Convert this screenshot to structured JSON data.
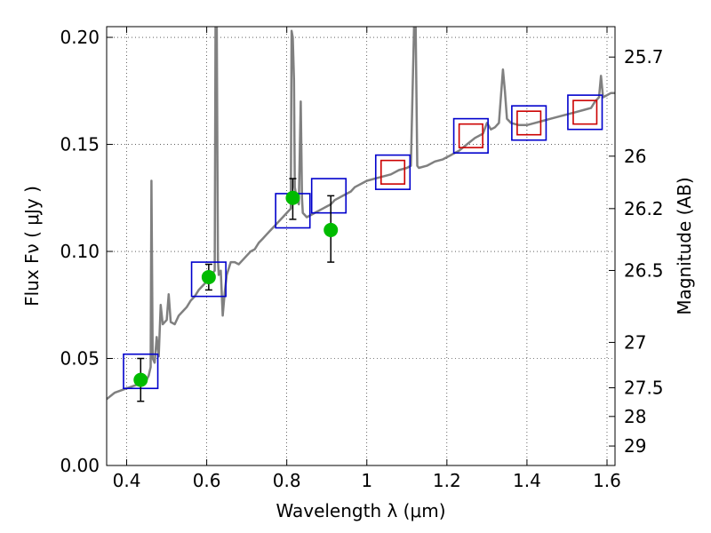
{
  "chart_data": {
    "type": "scatter",
    "xlabel": "Wavelength  λ (μm)",
    "ylabel": "Flux  Fν  ( μJy )",
    "y2label": "Magnitude (AB)",
    "xlim": [
      0.35,
      1.62
    ],
    "ylim": [
      0.0,
      0.205
    ],
    "grid": true,
    "xticks": [
      {
        "value": 0.4,
        "label": "0.4"
      },
      {
        "value": 0.6,
        "label": "0.6"
      },
      {
        "value": 0.8,
        "label": "0.8"
      },
      {
        "value": 1.0,
        "label": "1"
      },
      {
        "value": 1.2,
        "label": "1.2"
      },
      {
        "value": 1.4,
        "label": "1.4"
      },
      {
        "value": 1.6,
        "label": "1.6"
      }
    ],
    "yticks": [
      {
        "value": 0.0,
        "label": "0.00"
      },
      {
        "value": 0.05,
        "label": "0.05"
      },
      {
        "value": 0.1,
        "label": "0.10"
      },
      {
        "value": 0.15,
        "label": "0.15"
      },
      {
        "value": 0.2,
        "label": "0.20"
      }
    ],
    "y2ticks": [
      {
        "flux": 0.1908,
        "label": "25.7"
      },
      {
        "flux": 0.1445,
        "label": "26"
      },
      {
        "flux": 0.12,
        "label": "26.2"
      },
      {
        "flux": 0.0911,
        "label": "26.5"
      },
      {
        "flux": 0.0575,
        "label": "27"
      },
      {
        "flux": 0.0363,
        "label": "27.5"
      },
      {
        "flux": 0.0229,
        "label": "28"
      },
      {
        "flux": 0.0091,
        "label": "29"
      }
    ],
    "series": [
      {
        "kind": "line",
        "color": "#808080",
        "points": [
          [
            0.35,
            0.031
          ],
          [
            0.37,
            0.034
          ],
          [
            0.4,
            0.036
          ],
          [
            0.43,
            0.038
          ],
          [
            0.45,
            0.04
          ],
          [
            0.455,
            0.042
          ],
          [
            0.46,
            0.046
          ],
          [
            0.462,
            0.133
          ],
          [
            0.465,
            0.05
          ],
          [
            0.47,
            0.048
          ],
          [
            0.475,
            0.06
          ],
          [
            0.48,
            0.051
          ],
          [
            0.485,
            0.075
          ],
          [
            0.49,
            0.066
          ],
          [
            0.5,
            0.068
          ],
          [
            0.505,
            0.08
          ],
          [
            0.51,
            0.067
          ],
          [
            0.52,
            0.066
          ],
          [
            0.53,
            0.07
          ],
          [
            0.54,
            0.072
          ],
          [
            0.55,
            0.074
          ],
          [
            0.56,
            0.077
          ],
          [
            0.57,
            0.079
          ],
          [
            0.58,
            0.082
          ],
          [
            0.59,
            0.084
          ],
          [
            0.6,
            0.086
          ],
          [
            0.61,
            0.087
          ],
          [
            0.615,
            0.09
          ],
          [
            0.62,
            0.091
          ],
          [
            0.622,
            0.205
          ],
          [
            0.625,
            0.205
          ],
          [
            0.628,
            0.096
          ],
          [
            0.63,
            0.089
          ],
          [
            0.635,
            0.091
          ],
          [
            0.64,
            0.07
          ],
          [
            0.645,
            0.081
          ],
          [
            0.65,
            0.089
          ],
          [
            0.66,
            0.095
          ],
          [
            0.67,
            0.095
          ],
          [
            0.68,
            0.094
          ],
          [
            0.69,
            0.096
          ],
          [
            0.7,
            0.098
          ],
          [
            0.71,
            0.1
          ],
          [
            0.72,
            0.101
          ],
          [
            0.73,
            0.104
          ],
          [
            0.74,
            0.106
          ],
          [
            0.75,
            0.108
          ],
          [
            0.76,
            0.11
          ],
          [
            0.77,
            0.112
          ],
          [
            0.78,
            0.114
          ],
          [
            0.79,
            0.116
          ],
          [
            0.8,
            0.118
          ],
          [
            0.81,
            0.12
          ],
          [
            0.812,
            0.203
          ],
          [
            0.815,
            0.2
          ],
          [
            0.818,
            0.18
          ],
          [
            0.82,
            0.13
          ],
          [
            0.825,
            0.125
          ],
          [
            0.83,
            0.122
          ],
          [
            0.835,
            0.17
          ],
          [
            0.838,
            0.125
          ],
          [
            0.84,
            0.118
          ],
          [
            0.85,
            0.116
          ],
          [
            0.86,
            0.117
          ],
          [
            0.87,
            0.118
          ],
          [
            0.88,
            0.119
          ],
          [
            0.89,
            0.12
          ],
          [
            0.9,
            0.121
          ],
          [
            0.91,
            0.122
          ],
          [
            0.92,
            0.124
          ],
          [
            0.93,
            0.125
          ],
          [
            0.94,
            0.126
          ],
          [
            0.95,
            0.127
          ],
          [
            0.96,
            0.128
          ],
          [
            0.97,
            0.13
          ],
          [
            0.98,
            0.131
          ],
          [
            0.99,
            0.132
          ],
          [
            1.0,
            0.133
          ],
          [
            1.02,
            0.134
          ],
          [
            1.04,
            0.135
          ],
          [
            1.06,
            0.136
          ],
          [
            1.08,
            0.138
          ],
          [
            1.1,
            0.139
          ],
          [
            1.11,
            0.14
          ],
          [
            1.118,
            0.205
          ],
          [
            1.122,
            0.205
          ],
          [
            1.126,
            0.14
          ],
          [
            1.13,
            0.139
          ],
          [
            1.15,
            0.14
          ],
          [
            1.17,
            0.142
          ],
          [
            1.19,
            0.143
          ],
          [
            1.21,
            0.145
          ],
          [
            1.23,
            0.147
          ],
          [
            1.25,
            0.15
          ],
          [
            1.27,
            0.153
          ],
          [
            1.29,
            0.155
          ],
          [
            1.3,
            0.16
          ],
          [
            1.31,
            0.157
          ],
          [
            1.32,
            0.158
          ],
          [
            1.33,
            0.16
          ],
          [
            1.34,
            0.185
          ],
          [
            1.345,
            0.175
          ],
          [
            1.35,
            0.162
          ],
          [
            1.36,
            0.16
          ],
          [
            1.38,
            0.159
          ],
          [
            1.4,
            0.159
          ],
          [
            1.42,
            0.16
          ],
          [
            1.44,
            0.161
          ],
          [
            1.46,
            0.162
          ],
          [
            1.48,
            0.163
          ],
          [
            1.5,
            0.164
          ],
          [
            1.52,
            0.165
          ],
          [
            1.54,
            0.166
          ],
          [
            1.56,
            0.167
          ],
          [
            1.57,
            0.17
          ],
          [
            1.58,
            0.172
          ],
          [
            1.585,
            0.182
          ],
          [
            1.59,
            0.172
          ],
          [
            1.6,
            0.173
          ],
          [
            1.61,
            0.174
          ],
          [
            1.62,
            0.174
          ]
        ]
      },
      {
        "kind": "boxes",
        "color": "#0000cc",
        "size": 0.008,
        "points": [
          [
            0.435,
            0.044
          ],
          [
            0.605,
            0.087
          ],
          [
            0.815,
            0.119
          ],
          [
            0.905,
            0.126
          ],
          [
            1.065,
            0.137
          ],
          [
            1.26,
            0.154
          ],
          [
            1.405,
            0.16
          ],
          [
            1.545,
            0.165
          ]
        ]
      },
      {
        "kind": "red-boxes",
        "color": "#cc0000",
        "size": 0.0055,
        "points": [
          [
            1.065,
            0.137
          ],
          [
            1.26,
            0.154
          ],
          [
            1.405,
            0.16
          ],
          [
            1.545,
            0.165
          ]
        ]
      },
      {
        "kind": "errorbars",
        "color": "#000000",
        "points": [
          {
            "x": 0.435,
            "y": 0.04,
            "lo": 0.03,
            "hi": 0.05
          },
          {
            "x": 0.605,
            "y": 0.088,
            "lo": 0.082,
            "hi": 0.094
          },
          {
            "x": 0.815,
            "y": 0.125,
            "lo": 0.115,
            "hi": 0.134
          },
          {
            "x": 0.91,
            "y": 0.11,
            "lo": 0.095,
            "hi": 0.126
          }
        ]
      },
      {
        "kind": "dots",
        "color": "#00bb00",
        "points": [
          [
            0.435,
            0.04
          ],
          [
            0.605,
            0.088
          ],
          [
            0.815,
            0.125
          ],
          [
            0.91,
            0.11
          ]
        ]
      }
    ]
  }
}
